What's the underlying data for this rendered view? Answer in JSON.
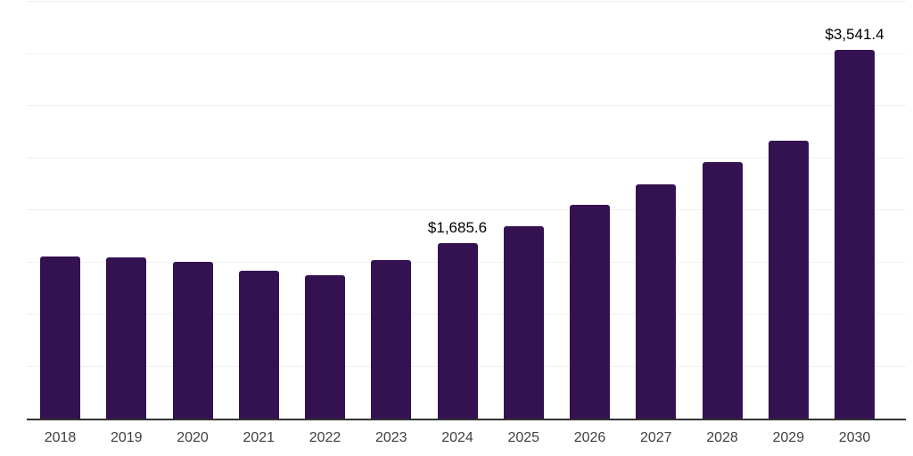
{
  "chart_data": {
    "type": "bar",
    "title": "",
    "xlabel": "",
    "ylabel": "",
    "categories": [
      "2018",
      "2019",
      "2020",
      "2021",
      "2022",
      "2023",
      "2024",
      "2025",
      "2026",
      "2027",
      "2028",
      "2029",
      "2030"
    ],
    "values": [
      1557,
      1549,
      1506,
      1420,
      1377,
      1523,
      1685.6,
      1850,
      2053,
      2250,
      2464,
      2669,
      3541.4
    ],
    "data_labels": {
      "2024": "$1,685.6",
      "2030": "$3,541.4"
    },
    "ylim": [
      0,
      4000
    ],
    "gridline_step": 500,
    "grid": "horizontal, light, no y tick labels",
    "legend": "none",
    "colors": {
      "bar": "#341150",
      "axis_line": "#333333",
      "gridline": "#f0f0f0",
      "tick_label": "#404040",
      "data_label": "#000000",
      "background": "#ffffff"
    }
  }
}
